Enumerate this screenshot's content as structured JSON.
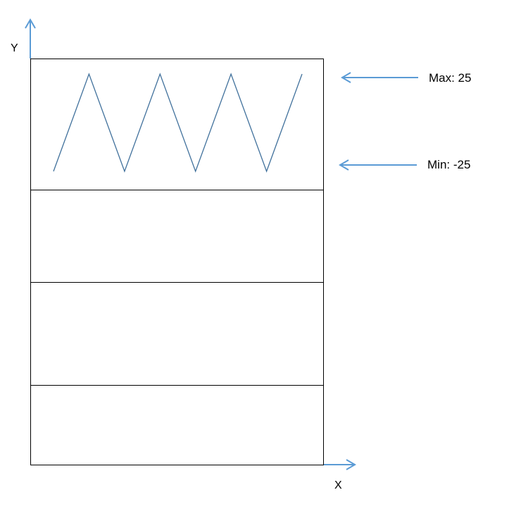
{
  "axes": {
    "y_label": "Y",
    "x_label": "X"
  },
  "annotations": {
    "max_label": "Max: 25",
    "min_label": "Min: -25"
  },
  "panels": 4,
  "waveform": {
    "type": "triangle",
    "max": 25,
    "min": -25,
    "points": [
      -25,
      25,
      -25,
      25,
      -25,
      25,
      -25,
      25
    ]
  },
  "colors": {
    "line": "#41719c",
    "arrow": "#5b9bd5",
    "border": "#000000"
  }
}
